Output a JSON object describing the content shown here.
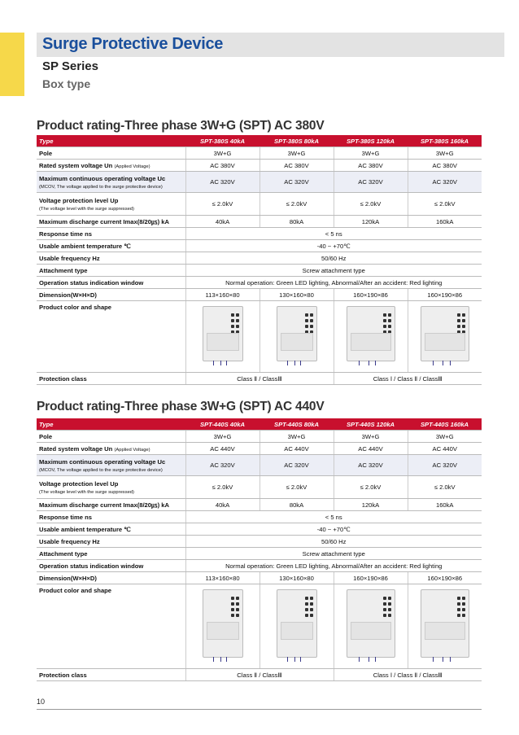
{
  "header": {
    "title": "Surge Protective Device",
    "series": "SP Series",
    "subtitle": "Box type"
  },
  "tables": [
    {
      "heading": "Product rating-Three phase 3W+G (SPT) AC 380V",
      "columns": [
        "Type",
        "SPT-380S 40kA",
        "SPT-380S 80kA",
        "SPT-380S 120kA",
        "SPT-380S 160kA"
      ],
      "rows": [
        {
          "label": "Pole",
          "cells": [
            "3W+G",
            "3W+G",
            "3W+G",
            "3W+G"
          ]
        },
        {
          "label": "Rated system voltage Un",
          "inline_note": "(Applied Voltage)",
          "cells": [
            "AC 380V",
            "AC 380V",
            "AC 380V",
            "AC 380V"
          ]
        },
        {
          "label": "Maximum continuous operating voltage Uc",
          "note": "(MCOV, The voltage applied to the surge protective device)",
          "cells": [
            "AC 320V",
            "AC 320V",
            "AC 320V",
            "AC 320V"
          ]
        },
        {
          "label": "Voltage protection level Up",
          "note": "(The voltage level with the surge suppressed)",
          "cells": [
            "≤ 2.0kV",
            "≤ 2.0kV",
            "≤ 2.0kV",
            "≤ 2.0kV"
          ]
        },
        {
          "label": "Maximum discharge current Imax(8/20㎲) kA",
          "cells": [
            "40kA",
            "80kA",
            "120kA",
            "160kA"
          ]
        },
        {
          "label": "Response time ns",
          "cells": [
            "< 5 ns"
          ]
        },
        {
          "label": "Usable ambient temperature ℃",
          "cells": [
            "-40 ~ +70℃"
          ]
        },
        {
          "label": "Usable frequency Hz",
          "cells": [
            "50/60 Hz"
          ]
        },
        {
          "label": "Attachment type",
          "cells": [
            "Screw attachment type"
          ]
        },
        {
          "label": "Operation status indication window",
          "cells": [
            "Normal operation: Green LED lighting, Abnormal/After an accident: Red lighting"
          ]
        },
        {
          "label": "Dimension(W×H×D)",
          "cells": [
            "113×160×80",
            "130×160×80",
            "160×190×86",
            "160×190×86"
          ]
        },
        {
          "label": "Product color and shape"
        },
        {
          "label": "Protection class",
          "cells": [
            "Class Ⅱ / ClassⅢ",
            "Class Ⅰ / Class Ⅱ / ClassⅢ"
          ]
        }
      ]
    },
    {
      "heading": "Product rating-Three phase 3W+G (SPT) AC 440V",
      "columns": [
        "Type",
        "SPT-440S 40kA",
        "SPT-440S 80kA",
        "SPT-440S 120kA",
        "SPT-440S 160kA"
      ],
      "rows": [
        {
          "label": "Pole",
          "cells": [
            "3W+G",
            "3W+G",
            "3W+G",
            "3W+G"
          ]
        },
        {
          "label": "Rated system voltage Un",
          "inline_note": "(Applied Voltage)",
          "cells": [
            "AC 440V",
            "AC 440V",
            "AC 440V",
            "AC 440V"
          ]
        },
        {
          "label": "Maximum continuous operating voltage Uc",
          "note": "(MCOV, The voltage applied to the surge protective device)",
          "cells": [
            "AC 320V",
            "AC 320V",
            "AC 320V",
            "AC 320V"
          ]
        },
        {
          "label": "Voltage protection level Up",
          "note": "(The voltage level with the surge suppressed)",
          "cells": [
            "≤ 2.0kV",
            "≤ 2.0kV",
            "≤ 2.0kV",
            "≤ 2.0kV"
          ]
        },
        {
          "label": "Maximum discharge current Imax(8/20㎲) kA",
          "cells": [
            "40kA",
            "80kA",
            "120kA",
            "160kA"
          ]
        },
        {
          "label": "Response time ns",
          "cells": [
            "< 5 ns"
          ]
        },
        {
          "label": "Usable ambient temperature ℃",
          "cells": [
            "-40 ~ +70℃"
          ]
        },
        {
          "label": "Usable frequency Hz",
          "cells": [
            "50/60 Hz"
          ]
        },
        {
          "label": "Attachment type",
          "cells": [
            "Screw attachment type"
          ]
        },
        {
          "label": "Operation status indication window",
          "cells": [
            "Normal operation: Green LED lighting, Abnormal/After an accident: Red lighting"
          ]
        },
        {
          "label": "Dimension(W×H×D)",
          "cells": [
            "113×160×80",
            "130×160×80",
            "160×190×86",
            "160×190×86"
          ]
        },
        {
          "label": "Product color and shape"
        },
        {
          "label": "Protection class",
          "cells": [
            "Class Ⅱ / ClassⅢ",
            "Class Ⅰ / Class Ⅱ / ClassⅢ"
          ]
        }
      ]
    }
  ],
  "footer": {
    "page": "10"
  }
}
